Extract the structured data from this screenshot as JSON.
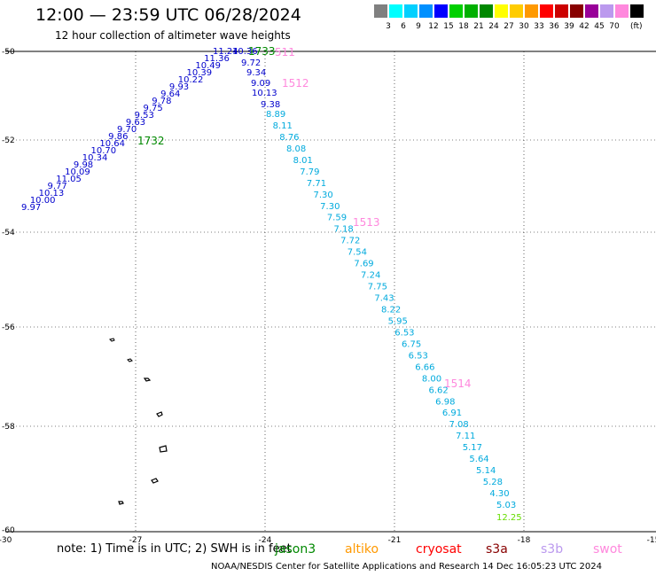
{
  "header": {
    "title": "12:00 — 23:59 UTC 06/28/2024",
    "subtitle": "12 hour collection of altimeter wave heights"
  },
  "colorbar": {
    "unit": "(ft)",
    "cells": [
      {
        "label": "",
        "color": "#808080"
      },
      {
        "label": "3",
        "color": "#00ffff"
      },
      {
        "label": "6",
        "color": "#00d0ff"
      },
      {
        "label": "9",
        "color": "#0090ff"
      },
      {
        "label": "12",
        "color": "#0000ff"
      },
      {
        "label": "15",
        "color": "#00d000"
      },
      {
        "label": "18",
        "color": "#00b000"
      },
      {
        "label": "21",
        "color": "#008800"
      },
      {
        "label": "24",
        "color": "#ffff00"
      },
      {
        "label": "27",
        "color": "#ffcc00"
      },
      {
        "label": "30",
        "color": "#ff9900"
      },
      {
        "label": "33",
        "color": "#ff0000"
      },
      {
        "label": "36",
        "color": "#cc0000"
      },
      {
        "label": "39",
        "color": "#880000"
      },
      {
        "label": "42",
        "color": "#990099"
      },
      {
        "label": "45",
        "color": "#bb99ee"
      },
      {
        "label": "70",
        "color": "#ff88dd"
      },
      {
        "label": "",
        "color": "#000000"
      }
    ]
  },
  "map": {
    "lon_ticks": [
      "-30",
      "-27",
      "-24",
      "-21",
      "-18",
      "-15"
    ],
    "lat_ticks": [
      "-50",
      "-52",
      "-54",
      "-56",
      "-58",
      "-60"
    ]
  },
  "track_labels": {
    "green_1733": "1733",
    "green_1732": "1732",
    "pink_511": "511",
    "pink_1512": "1512",
    "pink_1513": "1513",
    "pink_1514": "1514"
  },
  "track_blue": [
    "11.24",
    "11.36",
    "10.49",
    "10.39",
    "10.22",
    "9.93",
    "9.64",
    "9.78",
    "9.75",
    "9.53",
    "9.63",
    "9.70",
    "9.86",
    "10.64",
    "10.70",
    "10.34",
    "9.98",
    "10.09",
    "11.05",
    "9.77",
    "10.13",
    "10.00",
    "9.97"
  ],
  "track_top_blue": [
    "10.36",
    "9.72",
    "9.34",
    "9.09",
    "10.13",
    "9.38"
  ],
  "track_cyan": [
    "8.89",
    "8.11",
    "8.76",
    "8.08",
    "8.01",
    "7.79",
    "7.71",
    "7.30",
    "7.30",
    "7.59",
    "7.18",
    "7.72",
    "7.54",
    "7.69",
    "7.24",
    "7.75",
    "7.43",
    "8.22",
    "5.95",
    "6.53",
    "6.75",
    "6.53",
    "6.66",
    "8.00",
    "6.62",
    "6.98",
    "6.91",
    "7.08",
    "7.11",
    "5.17",
    "5.64",
    "5.14",
    "5.28",
    "4.30",
    "5.03"
  ],
  "track_last": "12.25",
  "footer": {
    "note": "note:  1) Time is in UTC;  2) SWH is in feet",
    "satellites": [
      {
        "name": "jason3",
        "color": "#008800"
      },
      {
        "name": "altiko",
        "color": "#ff9900"
      },
      {
        "name": "cryosat",
        "color": "#ff0000"
      },
      {
        "name": "s3a",
        "color": "#880000"
      },
      {
        "name": "s3b",
        "color": "#bb99ee"
      },
      {
        "name": "swot",
        "color": "#ff88dd"
      }
    ],
    "credit": "NOAA/NESDIS Center for Satellite Applications and Research    14 Dec 16:05:23 UTC 2024"
  },
  "colors": {
    "blue_track": "#0000cc",
    "cyan_track": "#00aadd",
    "green_label": "#008800",
    "pink_label": "#ff88dd",
    "last_value": "#66dd00"
  }
}
